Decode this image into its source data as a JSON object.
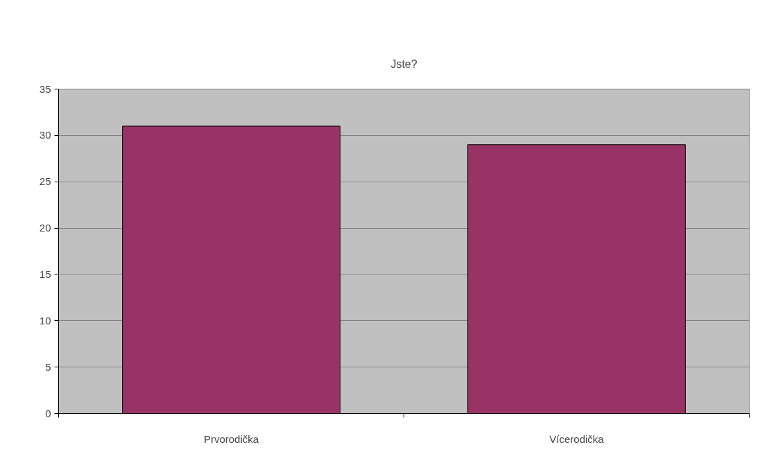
{
  "chart_data": {
    "type": "bar",
    "title": "Jste?",
    "categories": [
      "Prvorodička",
      "Vícerodička"
    ],
    "values": [
      31,
      29
    ],
    "color": "#993366",
    "ylim": [
      0,
      35
    ],
    "yticks": [
      0,
      5,
      10,
      15,
      20,
      25,
      30,
      35
    ],
    "grid": "y"
  }
}
